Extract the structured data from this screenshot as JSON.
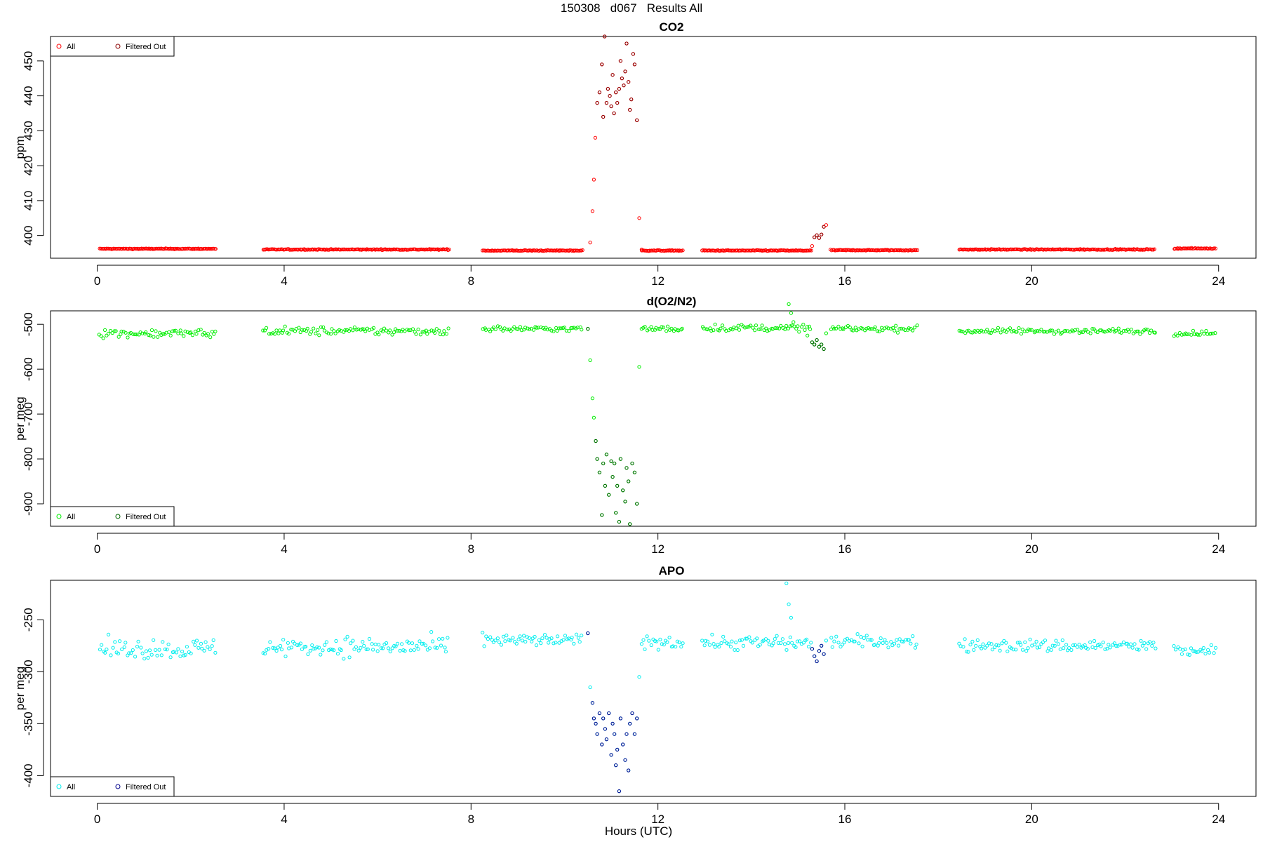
{
  "page_title": "150308   d067   Results All",
  "xlabel": "Hours (UTC)",
  "xlim": [
    -1,
    24.8
  ],
  "xticks": [
    0,
    4,
    8,
    12,
    16,
    20,
    24
  ],
  "legend_labels": {
    "all": "All",
    "filtered": "Filtered Out"
  },
  "chart_data": [
    {
      "type": "scatter",
      "title": "CO2",
      "ylabel": "ppm",
      "ylim": [
        393.5,
        457
      ],
      "yticks": [
        400,
        410,
        420,
        430,
        440,
        450
      ],
      "legend_position": "top-left",
      "colors": {
        "all": "#ff0000",
        "filtered": "#8b0000"
      },
      "segments": [
        {
          "start": 0.05,
          "end": 2.55,
          "level": 396.2
        },
        {
          "start": 3.55,
          "end": 7.55,
          "level": 396.0
        },
        {
          "start": 8.25,
          "end": 10.4,
          "level": 395.7
        },
        {
          "start": 11.65,
          "end": 12.55,
          "level": 395.7
        },
        {
          "start": 12.95,
          "end": 15.3,
          "level": 395.7
        },
        {
          "start": 15.7,
          "end": 17.55,
          "level": 395.8
        },
        {
          "start": 18.45,
          "end": 22.65,
          "level": 396.0
        },
        {
          "start": 23.05,
          "end": 23.95,
          "level": 396.3
        }
      ],
      "spike": {
        "x": [
          10.55,
          10.6,
          10.63,
          10.66,
          10.7,
          10.75,
          10.8,
          10.83,
          10.86,
          10.9,
          10.93,
          10.97,
          11.0,
          11.03,
          11.06,
          11.1,
          11.13,
          11.17,
          11.2,
          11.23,
          11.27,
          11.3,
          11.33,
          11.37,
          11.4,
          11.43,
          11.47,
          11.5,
          11.55,
          11.6,
          11.65
        ],
        "y": [
          398,
          407,
          416,
          428,
          438,
          441,
          449,
          434,
          457,
          438,
          442,
          440,
          437,
          446,
          435,
          441,
          438,
          442,
          450,
          445,
          443,
          447,
          455,
          444,
          436,
          439,
          452,
          449,
          433,
          405,
          396
        ],
        "filtered": [
          0,
          0,
          0,
          0,
          1,
          1,
          1,
          1,
          1,
          1,
          1,
          1,
          1,
          1,
          1,
          1,
          1,
          1,
          1,
          1,
          1,
          1,
          1,
          1,
          1,
          1,
          1,
          1,
          1,
          0,
          0
        ]
      },
      "bumps": [
        {
          "x": [
            15.3,
            15.35,
            15.4,
            15.45,
            15.5,
            15.55,
            15.6
          ],
          "y": [
            397,
            399.5,
            400.1,
            399.3,
            400.3,
            402.5,
            403
          ],
          "filtered": [
            0,
            1,
            1,
            1,
            1,
            1,
            0
          ]
        }
      ]
    },
    {
      "type": "scatter",
      "title": "d(O2/N2)",
      "ylabel": "per meg",
      "ylim": [
        -950,
        -470
      ],
      "yticks": [
        -500,
        -600,
        -700,
        -800,
        -900
      ],
      "legend_position": "bottom-left",
      "colors": {
        "all": "#00ee00",
        "filtered": "#006400"
      },
      "segments": [
        {
          "start": 0.05,
          "end": 2.55,
          "level": -520,
          "noise": 9
        },
        {
          "start": 3.55,
          "end": 7.55,
          "level": -515,
          "noise": 9
        },
        {
          "start": 8.25,
          "end": 10.4,
          "level": -510,
          "noise": 6
        },
        {
          "start": 11.65,
          "end": 12.55,
          "level": -510,
          "noise": 6
        },
        {
          "start": 12.95,
          "end": 15.3,
          "level": -508,
          "noise": 7
        },
        {
          "start": 15.7,
          "end": 17.55,
          "level": -510,
          "noise": 6
        },
        {
          "start": 18.45,
          "end": 22.65,
          "level": -515,
          "noise": 6
        },
        {
          "start": 23.05,
          "end": 23.95,
          "level": -520,
          "noise": 5
        }
      ],
      "spike": {
        "x": [
          10.5,
          10.55,
          10.6,
          10.63,
          10.67,
          10.7,
          10.75,
          10.8,
          10.83,
          10.87,
          10.9,
          10.95,
          11.0,
          11.03,
          11.07,
          11.1,
          11.13,
          11.17,
          11.2,
          11.25,
          11.3,
          11.33,
          11.37,
          11.4,
          11.45,
          11.5,
          11.55,
          11.6
        ],
        "y": [
          -510,
          -580,
          -665,
          -708,
          -760,
          -800,
          -830,
          -925,
          -810,
          -860,
          -790,
          -880,
          -805,
          -840,
          -810,
          -920,
          -860,
          -940,
          -800,
          -870,
          -895,
          -820,
          -850,
          -945,
          -810,
          -830,
          -900,
          -595
        ],
        "filtered": [
          1,
          0,
          0,
          0,
          1,
          1,
          1,
          1,
          1,
          1,
          1,
          1,
          1,
          1,
          1,
          1,
          1,
          1,
          1,
          1,
          1,
          1,
          1,
          1,
          1,
          1,
          1,
          0
        ]
      },
      "bumps": [
        {
          "x": [
            14.8,
            14.85,
            14.9,
            15.2,
            15.3,
            15.35,
            15.4,
            15.45,
            15.5,
            15.55,
            15.6
          ],
          "y": [
            -455,
            -475,
            -495,
            -525,
            -540,
            -545,
            -535,
            -550,
            -545,
            -555,
            -520
          ],
          "filtered": [
            0,
            0,
            0,
            0,
            1,
            1,
            1,
            1,
            1,
            1,
            0
          ]
        }
      ]
    },
    {
      "type": "scatter",
      "title": "APO",
      "ylabel": "per meg",
      "ylim": [
        -420,
        -212
      ],
      "yticks": [
        -250,
        -300,
        -350,
        -400
      ],
      "legend_position": "bottom-left",
      "colors": {
        "all": "#00eeee",
        "filtered": "#00008b"
      },
      "segments": [
        {
          "start": 0.05,
          "end": 2.55,
          "level": -278,
          "noise": 9
        },
        {
          "start": 3.55,
          "end": 7.55,
          "level": -276,
          "noise": 9
        },
        {
          "start": 8.25,
          "end": 10.4,
          "level": -270,
          "noise": 6
        },
        {
          "start": 11.65,
          "end": 12.55,
          "level": -271,
          "noise": 6
        },
        {
          "start": 12.95,
          "end": 15.3,
          "level": -272,
          "noise": 7
        },
        {
          "start": 15.7,
          "end": 17.55,
          "level": -271,
          "noise": 6
        },
        {
          "start": 18.45,
          "end": 22.65,
          "level": -275,
          "noise": 6
        },
        {
          "start": 23.05,
          "end": 23.95,
          "level": -280,
          "noise": 5
        }
      ],
      "spike": {
        "x": [
          10.5,
          10.55,
          10.6,
          10.63,
          10.67,
          10.7,
          10.75,
          10.8,
          10.83,
          10.87,
          10.9,
          10.95,
          11.0,
          11.03,
          11.07,
          11.1,
          11.13,
          11.17,
          11.2,
          11.25,
          11.3,
          11.33,
          11.37,
          11.4,
          11.45,
          11.5,
          11.55,
          11.6
        ],
        "y": [
          -263,
          -315,
          -330,
          -345,
          -350,
          -360,
          -340,
          -370,
          -345,
          -355,
          -365,
          -340,
          -380,
          -350,
          -360,
          -390,
          -375,
          -415,
          -345,
          -370,
          -385,
          -360,
          -395,
          -350,
          -340,
          -360,
          -345,
          -305
        ],
        "filtered": [
          1,
          0,
          1,
          1,
          1,
          1,
          1,
          1,
          1,
          1,
          1,
          1,
          1,
          1,
          1,
          1,
          1,
          1,
          1,
          1,
          1,
          1,
          1,
          1,
          1,
          1,
          1,
          0
        ]
      },
      "bumps": [
        {
          "x": [
            14.75,
            14.8,
            14.85,
            15.3,
            15.35,
            15.4,
            15.45,
            15.5,
            15.55,
            15.6
          ],
          "y": [
            -215,
            -235,
            -248,
            -278,
            -285,
            -290,
            -280,
            -275,
            -283,
            -270
          ],
          "filtered": [
            0,
            0,
            0,
            1,
            1,
            1,
            1,
            1,
            1,
            0
          ]
        }
      ]
    }
  ]
}
